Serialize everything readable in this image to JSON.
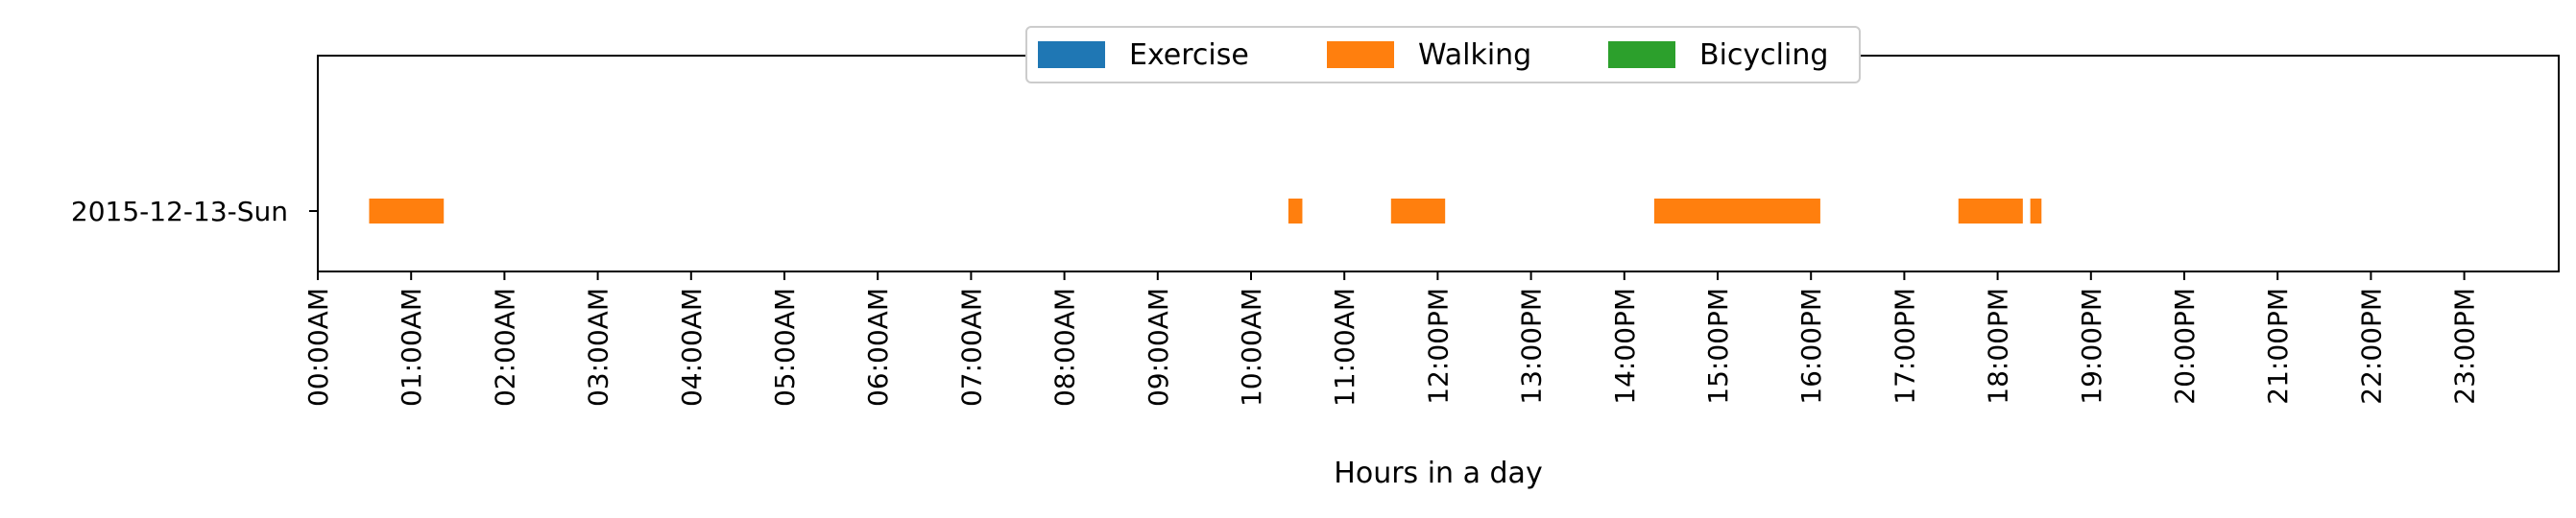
{
  "chart_data": {
    "type": "bar",
    "orientation": "horizontal-timeline",
    "title": "",
    "xlabel": "Hours in a day",
    "ylabel": "",
    "xlim": [
      0,
      24
    ],
    "x_ticks": [
      {
        "value": 0,
        "label": "00:00AM"
      },
      {
        "value": 1,
        "label": "01:00AM"
      },
      {
        "value": 2,
        "label": "02:00AM"
      },
      {
        "value": 3,
        "label": "03:00AM"
      },
      {
        "value": 4,
        "label": "04:00AM"
      },
      {
        "value": 5,
        "label": "05:00AM"
      },
      {
        "value": 6,
        "label": "06:00AM"
      },
      {
        "value": 7,
        "label": "07:00AM"
      },
      {
        "value": 8,
        "label": "08:00AM"
      },
      {
        "value": 9,
        "label": "09:00AM"
      },
      {
        "value": 10,
        "label": "10:00AM"
      },
      {
        "value": 11,
        "label": "11:00AM"
      },
      {
        "value": 12,
        "label": "12:00PM"
      },
      {
        "value": 13,
        "label": "13:00PM"
      },
      {
        "value": 14,
        "label": "14:00PM"
      },
      {
        "value": 15,
        "label": "15:00PM"
      },
      {
        "value": 16,
        "label": "16:00PM"
      },
      {
        "value": 17,
        "label": "17:00PM"
      },
      {
        "value": 18,
        "label": "18:00PM"
      },
      {
        "value": 19,
        "label": "19:00PM"
      },
      {
        "value": 20,
        "label": "20:00PM"
      },
      {
        "value": 21,
        "label": "21:00PM"
      },
      {
        "value": 22,
        "label": "22:00PM"
      },
      {
        "value": 23,
        "label": "23:00PM"
      }
    ],
    "rows": [
      "2015-12-13-Sun"
    ],
    "legend_position": "top-center",
    "grid": false,
    "series": [
      {
        "name": "Exercise",
        "color": "#1f77b4",
        "segments": []
      },
      {
        "name": "Walking",
        "color": "#ff7f0e",
        "segments": [
          {
            "row": "2015-12-13-Sun",
            "start": 0.55,
            "end": 1.35
          },
          {
            "row": "2015-12-13-Sun",
            "start": 10.4,
            "end": 10.55
          },
          {
            "row": "2015-12-13-Sun",
            "start": 11.5,
            "end": 12.08
          },
          {
            "row": "2015-12-13-Sun",
            "start": 14.32,
            "end": 16.1
          },
          {
            "row": "2015-12-13-Sun",
            "start": 17.58,
            "end": 18.27
          },
          {
            "row": "2015-12-13-Sun",
            "start": 18.35,
            "end": 18.47
          }
        ]
      },
      {
        "name": "Bicycling",
        "color": "#2ca02c",
        "segments": []
      }
    ]
  }
}
